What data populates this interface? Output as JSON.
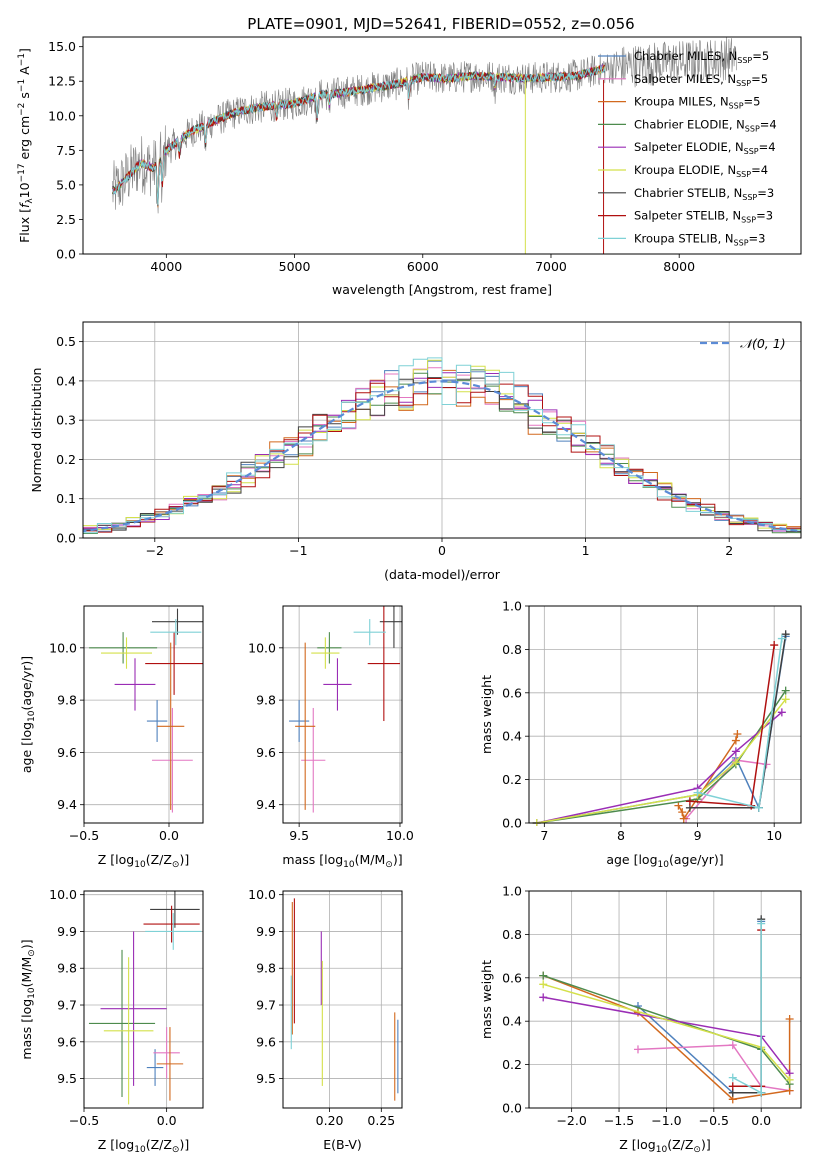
{
  "figure": {
    "title": "PLATE=0901, MJD=52641, FIBERID=0552, z=0.056",
    "palette": {
      "Chabrier MILES": "#4f81bd",
      "Salpeter MILES": "#e377c2",
      "Kroupa MILES": "#d2691e",
      "Chabrier ELODIE": "#4d8b4d",
      "Salpeter ELODIE": "#9a2db5",
      "Kroupa ELODIE": "#d4e04a",
      "Chabrier STELIB": "#404040",
      "Salpeter STELIB": "#b01010",
      "Kroupa STELIB": "#7fd1d6"
    }
  },
  "chart_data": [
    {
      "id": "spectrum",
      "type": "line",
      "title": "PLATE=0901, MJD=52641, FIBERID=0552, z=0.056",
      "xlabel": "wavelength [Angstrom, rest frame]",
      "ylabel_parts": [
        "Flux [",
        "f",
        "λ",
        "10",
        "−17",
        " erg cm",
        "−2",
        " s",
        "−1",
        " A",
        "−1",
        "]"
      ],
      "xlim": [
        3350,
        8950
      ],
      "ylim": [
        0,
        15.7
      ],
      "xticks": [
        4000,
        5000,
        6000,
        7000,
        8000
      ],
      "yticks": [
        0.0,
        2.5,
        5.0,
        7.5,
        10.0,
        12.5,
        15.0
      ],
      "legend_position": "right",
      "legend": [
        {
          "label": "Chabrier MILES, N",
          "sub": "SSP",
          "tail": "=5",
          "color": "#4f81bd"
        },
        {
          "label": "Salpeter MILES, N",
          "sub": "SSP",
          "tail": "=5",
          "color": "#e377c2"
        },
        {
          "label": "Kroupa MILES, N",
          "sub": "SSP",
          "tail": "=5",
          "color": "#d2691e"
        },
        {
          "label": "Chabrier ELODIE, N",
          "sub": "SSP",
          "tail": "=4",
          "color": "#4d8b4d"
        },
        {
          "label": "Salpeter ELODIE, N",
          "sub": "SSP",
          "tail": "=4",
          "color": "#9a2db5"
        },
        {
          "label": "Kroupa ELODIE, N",
          "sub": "SSP",
          "tail": "=4",
          "color": "#d4e04a"
        },
        {
          "label": "Chabrier STELIB, N",
          "sub": "SSP",
          "tail": "=3",
          "color": "#404040"
        },
        {
          "label": "Salpeter STELIB, N",
          "sub": "SSP",
          "tail": "=3",
          "color": "#b01010"
        },
        {
          "label": "Kroupa STELIB, N",
          "sub": "SSP",
          "tail": "=3",
          "color": "#7fd1d6"
        }
      ],
      "continuum": {
        "x": [
          3600,
          3700,
          3800,
          3900,
          4000,
          4100,
          4200,
          4300,
          4400,
          4500,
          4600,
          4800,
          5000,
          5200,
          5400,
          5600,
          5800,
          6000,
          6200,
          6400,
          6600,
          6800,
          7000,
          7200,
          7400,
          7600,
          7800,
          8000,
          8200,
          8400
        ],
        "y": [
          4.6,
          5.6,
          6.6,
          6.2,
          7.5,
          8.2,
          8.9,
          9.3,
          9.7,
          10.1,
          10.4,
          10.7,
          10.9,
          11.5,
          11.7,
          12.0,
          12.3,
          12.8,
          12.7,
          12.9,
          12.8,
          12.7,
          12.8,
          12.9,
          13.4,
          13.6,
          13.8,
          13.9,
          14.0,
          14.2
        ]
      },
      "data_range": [
        3580,
        8450
      ],
      "model_range": [
        3580,
        7420
      ],
      "dips": [
        {
          "x": 3934,
          "depth": 3.5
        },
        {
          "x": 3968,
          "depth": 2.5
        },
        {
          "x": 4102,
          "depth": 1.2
        },
        {
          "x": 4305,
          "depth": 1.6
        },
        {
          "x": 4861,
          "depth": 1.1
        },
        {
          "x": 5175,
          "depth": 2.1
        },
        {
          "x": 5270,
          "depth": 0.9
        },
        {
          "x": 5892,
          "depth": 1.5
        },
        {
          "x": 6563,
          "depth": 0.8
        }
      ],
      "vertical_spikes": [
        {
          "x": 6800,
          "color": "#d4e04a"
        },
        {
          "x": 7410,
          "color": "#b01010"
        }
      ]
    },
    {
      "id": "residuals",
      "type": "line",
      "xlabel": "(data-model)/error",
      "ylabel": "Normed distribution",
      "xlim": [
        -2.5,
        2.5
      ],
      "ylim": [
        0,
        0.55
      ],
      "xticks": [
        -2,
        -1,
        0,
        1,
        2
      ],
      "xtick_labels": [
        "−2",
        "−1",
        "0",
        "1",
        "2"
      ],
      "yticks": [
        0.0,
        0.1,
        0.2,
        0.3,
        0.4,
        0.5
      ],
      "grid": true,
      "legend_position": "top-right",
      "legend_label": "𝒩(0, 1)",
      "bin_width": 0.1,
      "gaussian": {
        "mean": 0,
        "sigma": 1,
        "color": "#5b8bd6"
      }
    },
    {
      "id": "age-vs-Z",
      "type": "scatter",
      "xlabel_parts": [
        "Z [log",
        "10",
        "(Z/Z",
        "⊙",
        ")]"
      ],
      "ylabel_parts": [
        "age  [log",
        "10",
        "(age/yr)]"
      ],
      "xlim": [
        -0.5,
        0.2
      ],
      "ylim": [
        9.33,
        10.16
      ],
      "xticks": [
        -0.5,
        0.0
      ],
      "xtick_labels": [
        "−0.5",
        "0.0"
      ],
      "yticks": [
        9.4,
        9.6,
        9.8,
        10.0
      ],
      "grid": true,
      "points": [
        {
          "x": -0.07,
          "xerr": 0.06,
          "y": 9.72,
          "yerr": 0.08,
          "color": "#4f81bd"
        },
        {
          "x": 0.02,
          "xerr": 0.12,
          "y": 9.57,
          "yerr": 0.2,
          "color": "#e377c2"
        },
        {
          "x": 0.01,
          "xerr": 0.08,
          "y": 9.7,
          "yerr": 0.32,
          "color": "#d2691e"
        },
        {
          "x": -0.27,
          "xerr": 0.2,
          "y": 10.0,
          "yerr": 0.06,
          "color": "#4d8b4d"
        },
        {
          "x": -0.2,
          "xerr": 0.12,
          "y": 9.86,
          "yerr": 0.1,
          "color": "#9a2db5"
        },
        {
          "x": -0.25,
          "xerr": 0.15,
          "y": 9.98,
          "yerr": 0.06,
          "color": "#d4e04a"
        },
        {
          "x": 0.05,
          "xerr": 0.15,
          "y": 10.1,
          "yerr": 0.05,
          "color": "#404040"
        },
        {
          "x": 0.03,
          "xerr": 0.17,
          "y": 9.94,
          "yerr": 0.12,
          "color": "#b01010"
        },
        {
          "x": 0.04,
          "xerr": 0.15,
          "y": 10.06,
          "yerr": 0.05,
          "color": "#7fd1d6"
        }
      ]
    },
    {
      "id": "age-vs-mass",
      "type": "scatter",
      "xlabel_parts": [
        "mass [log",
        "10",
        "(M/M",
        "⊙",
        ")]"
      ],
      "ylabel_parts": [],
      "xlim": [
        9.42,
        10.01
      ],
      "ylim": [
        9.33,
        10.16
      ],
      "xticks": [
        9.5,
        10.0
      ],
      "xtick_labels": [
        "9.5",
        "10.0"
      ],
      "yticks": [
        9.4,
        9.6,
        9.8,
        10.0
      ],
      "grid": true,
      "points": [
        {
          "x": 9.5,
          "xerr": 0.05,
          "y": 9.72,
          "yerr": 0.08,
          "color": "#4f81bd"
        },
        {
          "x": 9.57,
          "xerr": 0.06,
          "y": 9.57,
          "yerr": 0.2,
          "color": "#e377c2"
        },
        {
          "x": 9.53,
          "xerr": 0.05,
          "y": 9.7,
          "yerr": 0.32,
          "color": "#d2691e"
        },
        {
          "x": 9.65,
          "xerr": 0.06,
          "y": 10.0,
          "yerr": 0.06,
          "color": "#4d8b4d"
        },
        {
          "x": 9.69,
          "xerr": 0.07,
          "y": 9.86,
          "yerr": 0.1,
          "color": "#9a2db5"
        },
        {
          "x": 9.63,
          "xerr": 0.07,
          "y": 9.98,
          "yerr": 0.06,
          "color": "#d4e04a"
        },
        {
          "x": 9.97,
          "xerr": 0.07,
          "y": 10.1,
          "yerr": 0.1,
          "color": "#404040"
        },
        {
          "x": 9.92,
          "xerr": 0.08,
          "y": 9.94,
          "yerr": 0.22,
          "color": "#b01010"
        },
        {
          "x": 9.85,
          "xerr": 0.08,
          "y": 10.06,
          "yerr": 0.05,
          "color": "#7fd1d6"
        }
      ]
    },
    {
      "id": "weight-vs-age",
      "type": "line",
      "xlabel_parts": [
        "age  [log",
        "10",
        "(age/yr)]"
      ],
      "ylabel": "mass weight",
      "xlim": [
        6.8,
        10.35
      ],
      "ylim": [
        0,
        1.0
      ],
      "xticks": [
        7,
        8,
        9,
        10
      ],
      "yticks": [
        0.0,
        0.2,
        0.4,
        0.6,
        0.8,
        1.0
      ],
      "grid": true,
      "series": [
        {
          "color": "#4f81bd",
          "x": [
            6.9,
            9.0,
            9.5,
            9.8,
            10.15
          ],
          "y": [
            0.0,
            0.13,
            0.3,
            0.07,
            0.86
          ]
        },
        {
          "color": "#e377c2",
          "x": [
            8.85,
            9.5,
            9.9
          ],
          "y": [
            0.02,
            0.29,
            0.27
          ]
        },
        {
          "color": "#d2691e",
          "x": [
            8.75,
            8.8,
            8.82,
            9.5,
            9.52
          ],
          "y": [
            0.08,
            0.05,
            0.02,
            0.38,
            0.41
          ]
        },
        {
          "color": "#4d8b4d",
          "x": [
            6.9,
            9.0,
            9.5,
            10.15
          ],
          "y": [
            0.0,
            0.11,
            0.27,
            0.61
          ]
        },
        {
          "color": "#9a2db5",
          "x": [
            6.9,
            9.0,
            9.5,
            10.1
          ],
          "y": [
            0.0,
            0.16,
            0.33,
            0.51
          ]
        },
        {
          "color": "#d4e04a",
          "x": [
            6.9,
            9.0,
            9.5,
            10.15
          ],
          "y": [
            0.0,
            0.13,
            0.28,
            0.57
          ]
        },
        {
          "color": "#404040",
          "x": [
            8.9,
            9.8,
            10.15
          ],
          "y": [
            0.07,
            0.07,
            0.87
          ]
        },
        {
          "color": "#b01010",
          "x": [
            8.9,
            9.7,
            10.0
          ],
          "y": [
            0.1,
            0.08,
            0.82
          ]
        },
        {
          "color": "#7fd1d6",
          "x": [
            9.0,
            9.8,
            10.1
          ],
          "y": [
            0.14,
            0.07,
            0.85
          ]
        }
      ]
    },
    {
      "id": "mass-vs-Z",
      "type": "scatter",
      "xlabel_parts": [
        "Z [log",
        "10",
        "(Z/Z",
        "⊙",
        ")]"
      ],
      "ylabel_parts": [
        "mass [log",
        "10",
        "(M/M",
        "⊙",
        ")]"
      ],
      "xlim": [
        -0.5,
        0.22
      ],
      "ylim": [
        9.42,
        10.01
      ],
      "xticks": [
        -0.5,
        0.0
      ],
      "xtick_labels": [
        "−0.5",
        "0.0"
      ],
      "yticks": [
        9.5,
        9.6,
        9.7,
        9.8,
        9.9,
        10.0
      ],
      "grid": true,
      "points": [
        {
          "x": -0.07,
          "xerr": 0.05,
          "y": 9.53,
          "yerr": 0.05,
          "color": "#4f81bd"
        },
        {
          "x": 0.0,
          "xerr": 0.08,
          "y": 9.57,
          "yerr": 0.07,
          "color": "#e377c2"
        },
        {
          "x": 0.02,
          "xerr": 0.08,
          "y": 9.54,
          "yerr": 0.1,
          "color": "#d2691e"
        },
        {
          "x": -0.27,
          "xerr": 0.2,
          "y": 9.65,
          "yerr": 0.2,
          "color": "#4d8b4d"
        },
        {
          "x": -0.2,
          "xerr": 0.2,
          "y": 9.69,
          "yerr": 0.21,
          "color": "#9a2db5"
        },
        {
          "x": -0.23,
          "xerr": 0.15,
          "y": 9.63,
          "yerr": 0.2,
          "color": "#d4e04a"
        },
        {
          "x": 0.05,
          "xerr": 0.15,
          "y": 9.96,
          "yerr": 0.05,
          "color": "#404040"
        },
        {
          "x": 0.03,
          "xerr": 0.17,
          "y": 9.92,
          "yerr": 0.05,
          "color": "#b01010"
        },
        {
          "x": 0.04,
          "xerr": 0.17,
          "y": 9.9,
          "yerr": 0.05,
          "color": "#7fd1d6"
        }
      ]
    },
    {
      "id": "mass-vs-EBV",
      "type": "scatter",
      "xlabel_parts": [
        "E(B-V)"
      ],
      "ylabel_parts": [],
      "xlim": [
        0.155,
        0.27
      ],
      "ylim": [
        9.42,
        10.01
      ],
      "xticks": [
        0.2,
        0.25
      ],
      "xtick_labels": [
        "0.20",
        "0.25"
      ],
      "yticks": [
        9.5,
        9.6,
        9.7,
        9.8,
        9.9,
        10.0
      ],
      "grid": true,
      "points": [
        {
          "x": 0.164,
          "xerr": 0,
          "y": 9.8,
          "yerr": 0.18,
          "color": "#d2691e"
        },
        {
          "x": 0.166,
          "xerr": 0,
          "y": 9.82,
          "yerr": 0.17,
          "color": "#b01010"
        },
        {
          "x": 0.163,
          "xerr": 0,
          "y": 9.68,
          "yerr": 0.1,
          "color": "#7fd1d6"
        },
        {
          "x": 0.192,
          "xerr": 0,
          "y": 9.8,
          "yerr": 0.1,
          "color": "#9a2db5"
        },
        {
          "x": 0.193,
          "xerr": 0,
          "y": 9.65,
          "yerr": 0.17,
          "color": "#d4e04a"
        },
        {
          "x": 0.263,
          "xerr": 0,
          "y": 9.56,
          "yerr": 0.12,
          "color": "#d2691e"
        },
        {
          "x": 0.266,
          "xerr": 0,
          "y": 9.56,
          "yerr": 0.1,
          "color": "#4f81bd"
        }
      ]
    },
    {
      "id": "weight-vs-Z",
      "type": "line",
      "xlabel_parts": [
        "Z [log",
        "10",
        "(Z/Z",
        "⊙",
        ")]"
      ],
      "ylabel": "mass weight",
      "xlim": [
        -2.45,
        0.42
      ],
      "ylim": [
        0,
        1.0
      ],
      "xticks": [
        -2.0,
        -1.5,
        -1.0,
        -0.5,
        0.0
      ],
      "xtick_labels": [
        "−2.0",
        "−1.5",
        "−1.0",
        "−0.5",
        "0.0"
      ],
      "yticks": [
        0.0,
        0.2,
        0.4,
        0.6,
        0.8,
        1.0
      ],
      "grid": true,
      "series": [
        {
          "color": "#4f81bd",
          "x": [
            -1.3,
            -0.3,
            0.0,
            0.0
          ],
          "y": [
            0.47,
            0.07,
            0.07,
            0.86
          ]
        },
        {
          "color": "#e377c2",
          "x": [
            -1.3,
            -0.3,
            0.0,
            0.3
          ],
          "y": [
            0.27,
            0.29,
            0.1,
            0.08
          ]
        },
        {
          "color": "#d2691e",
          "x": [
            -2.3,
            -1.3,
            -0.3,
            0.3,
            0.3
          ],
          "y": [
            0.61,
            0.44,
            0.04,
            0.08,
            0.41
          ]
        },
        {
          "color": "#4d8b4d",
          "x": [
            -2.3,
            0.0,
            0.3
          ],
          "y": [
            0.61,
            0.27,
            0.11
          ]
        },
        {
          "color": "#9a2db5",
          "x": [
            -2.3,
            0.0,
            0.3
          ],
          "y": [
            0.51,
            0.33,
            0.16
          ]
        },
        {
          "color": "#d4e04a",
          "x": [
            -2.3,
            0.0,
            0.3
          ],
          "y": [
            0.57,
            0.28,
            0.13
          ]
        },
        {
          "color": "#404040",
          "x": [
            -0.3,
            0.0,
            0.0
          ],
          "y": [
            0.07,
            0.07,
            0.87
          ]
        },
        {
          "color": "#b01010",
          "x": [
            -0.3,
            0.0,
            0.0
          ],
          "y": [
            0.1,
            0.1,
            0.82
          ]
        },
        {
          "color": "#7fd1d6",
          "x": [
            -0.3,
            0.0,
            0.0
          ],
          "y": [
            0.14,
            0.07,
            0.85
          ]
        }
      ]
    }
  ]
}
